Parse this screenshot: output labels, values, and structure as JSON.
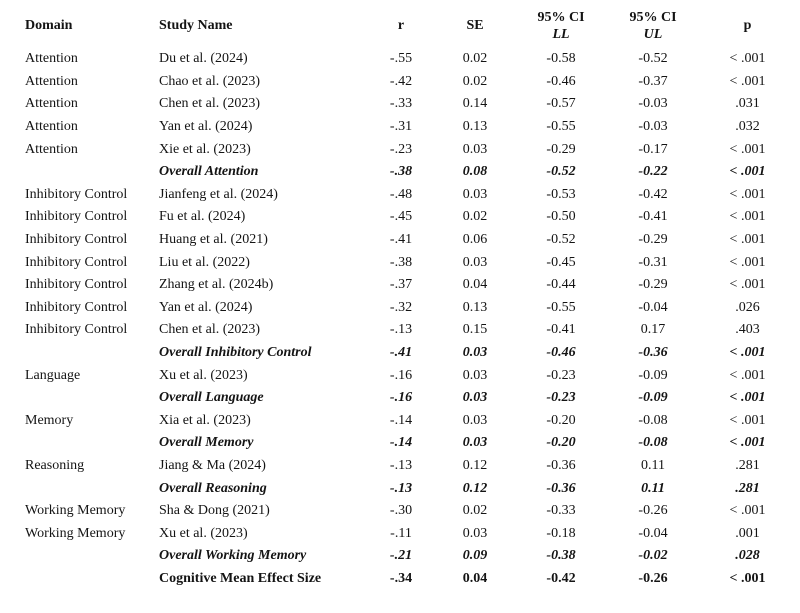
{
  "table": {
    "headers": {
      "domain": "Domain",
      "study": "Study Name",
      "r": "r",
      "se": "SE",
      "ci_ll_line1": "95% CI",
      "ci_ll_line2": "LL",
      "ci_ul_line1": "95% CI",
      "ci_ul_line2": "UL",
      "p": "p"
    },
    "rows": [
      {
        "domain": "Attention",
        "study": "Du et al. (2024)",
        "r": "-.55",
        "se": "0.02",
        "ll": "-0.58",
        "ul": "-0.52",
        "p": "< .001",
        "style": "normal"
      },
      {
        "domain": "Attention",
        "study": "Chao et al. (2023)",
        "r": "-.42",
        "se": "0.02",
        "ll": "-0.46",
        "ul": "-0.37",
        "p": "< .001",
        "style": "normal"
      },
      {
        "domain": "Attention",
        "study": "Chen et al. (2023)",
        "r": "-.33",
        "se": "0.14",
        "ll": "-0.57",
        "ul": "-0.03",
        "p": ".031",
        "style": "normal"
      },
      {
        "domain": "Attention",
        "study": "Yan et al. (2024)",
        "r": "-.31",
        "se": "0.13",
        "ll": "-0.55",
        "ul": "-0.03",
        "p": ".032",
        "style": "normal"
      },
      {
        "domain": "Attention",
        "study": "Xie et al. (2023)",
        "r": "-.23",
        "se": "0.03",
        "ll": "-0.29",
        "ul": "-0.17",
        "p": "< .001",
        "style": "normal"
      },
      {
        "domain": "",
        "study": "Overall Attention",
        "r": "-.38",
        "se": "0.08",
        "ll": "-0.52",
        "ul": "-0.22",
        "p": "< .001",
        "style": "overall"
      },
      {
        "domain": "Inhibitory Control",
        "study": "Jianfeng et al. (2024)",
        "r": "-.48",
        "se": "0.03",
        "ll": "-0.53",
        "ul": "-0.42",
        "p": "< .001",
        "style": "normal"
      },
      {
        "domain": "Inhibitory Control",
        "study": "Fu et al. (2024)",
        "r": "-.45",
        "se": "0.02",
        "ll": "-0.50",
        "ul": "-0.41",
        "p": "< .001",
        "style": "normal"
      },
      {
        "domain": "Inhibitory Control",
        "study": "Huang et al. (2021)",
        "r": "-.41",
        "se": "0.06",
        "ll": "-0.52",
        "ul": "-0.29",
        "p": "< .001",
        "style": "normal"
      },
      {
        "domain": "Inhibitory Control",
        "study": "Liu et al. (2022)",
        "r": "-.38",
        "se": "0.03",
        "ll": "-0.45",
        "ul": "-0.31",
        "p": "< .001",
        "style": "normal"
      },
      {
        "domain": "Inhibitory Control",
        "study": "Zhang et al. (2024b)",
        "r": "-.37",
        "se": "0.04",
        "ll": "-0.44",
        "ul": "-0.29",
        "p": "< .001",
        "style": "normal"
      },
      {
        "domain": "Inhibitory Control",
        "study": "Yan et al. (2024)",
        "r": "-.32",
        "se": "0.13",
        "ll": "-0.55",
        "ul": "-0.04",
        "p": ".026",
        "style": "normal"
      },
      {
        "domain": "Inhibitory Control",
        "study": "Chen et al. (2023)",
        "r": "-.13",
        "se": "0.15",
        "ll": "-0.41",
        "ul": "0.17",
        "p": ".403",
        "style": "normal"
      },
      {
        "domain": "",
        "study": "Overall Inhibitory Control",
        "r": "-.41",
        "se": "0.03",
        "ll": "-0.46",
        "ul": "-0.36",
        "p": "< .001",
        "style": "overall"
      },
      {
        "domain": "Language",
        "study": "Xu et al. (2023)",
        "r": "-.16",
        "se": "0.03",
        "ll": "-0.23",
        "ul": "-0.09",
        "p": "< .001",
        "style": "normal"
      },
      {
        "domain": "",
        "study": "Overall Language",
        "r": "-.16",
        "se": "0.03",
        "ll": "-0.23",
        "ul": "-0.09",
        "p": "< .001",
        "style": "overall"
      },
      {
        "domain": "Memory",
        "study": "Xia et al. (2023)",
        "r": "-.14",
        "se": "0.03",
        "ll": "-0.20",
        "ul": "-0.08",
        "p": "< .001",
        "style": "normal"
      },
      {
        "domain": "",
        "study": "Overall Memory",
        "r": "-.14",
        "se": "0.03",
        "ll": "-0.20",
        "ul": "-0.08",
        "p": "< .001",
        "style": "overall"
      },
      {
        "domain": "Reasoning",
        "study": "Jiang & Ma (2024)",
        "r": "-.13",
        "se": "0.12",
        "ll": "-0.36",
        "ul": "0.11",
        "p": ".281",
        "style": "normal"
      },
      {
        "domain": "",
        "study": "Overall Reasoning",
        "r": "-.13",
        "se": "0.12",
        "ll": "-0.36",
        "ul": "0.11",
        "p": ".281",
        "style": "overall"
      },
      {
        "domain": "Working Memory",
        "study": "Sha & Dong (2021)",
        "r": "-.30",
        "se": "0.02",
        "ll": "-0.33",
        "ul": "-0.26",
        "p": "< .001",
        "style": "normal"
      },
      {
        "domain": "Working Memory",
        "study": "Xu et al. (2023)",
        "r": "-.11",
        "se": "0.03",
        "ll": "-0.18",
        "ul": "-0.04",
        "p": ".001",
        "style": "normal"
      },
      {
        "domain": "",
        "study": "Overall Working Memory",
        "r": "-.21",
        "se": "0.09",
        "ll": "-0.38",
        "ul": "-0.02",
        "p": ".028",
        "style": "overall"
      },
      {
        "domain": "",
        "study": "Cognitive Mean Effect Size",
        "r": "-.34",
        "se": "0.04",
        "ll": "-0.42",
        "ul": "-0.26",
        "p": "< .001",
        "style": "final"
      }
    ]
  }
}
